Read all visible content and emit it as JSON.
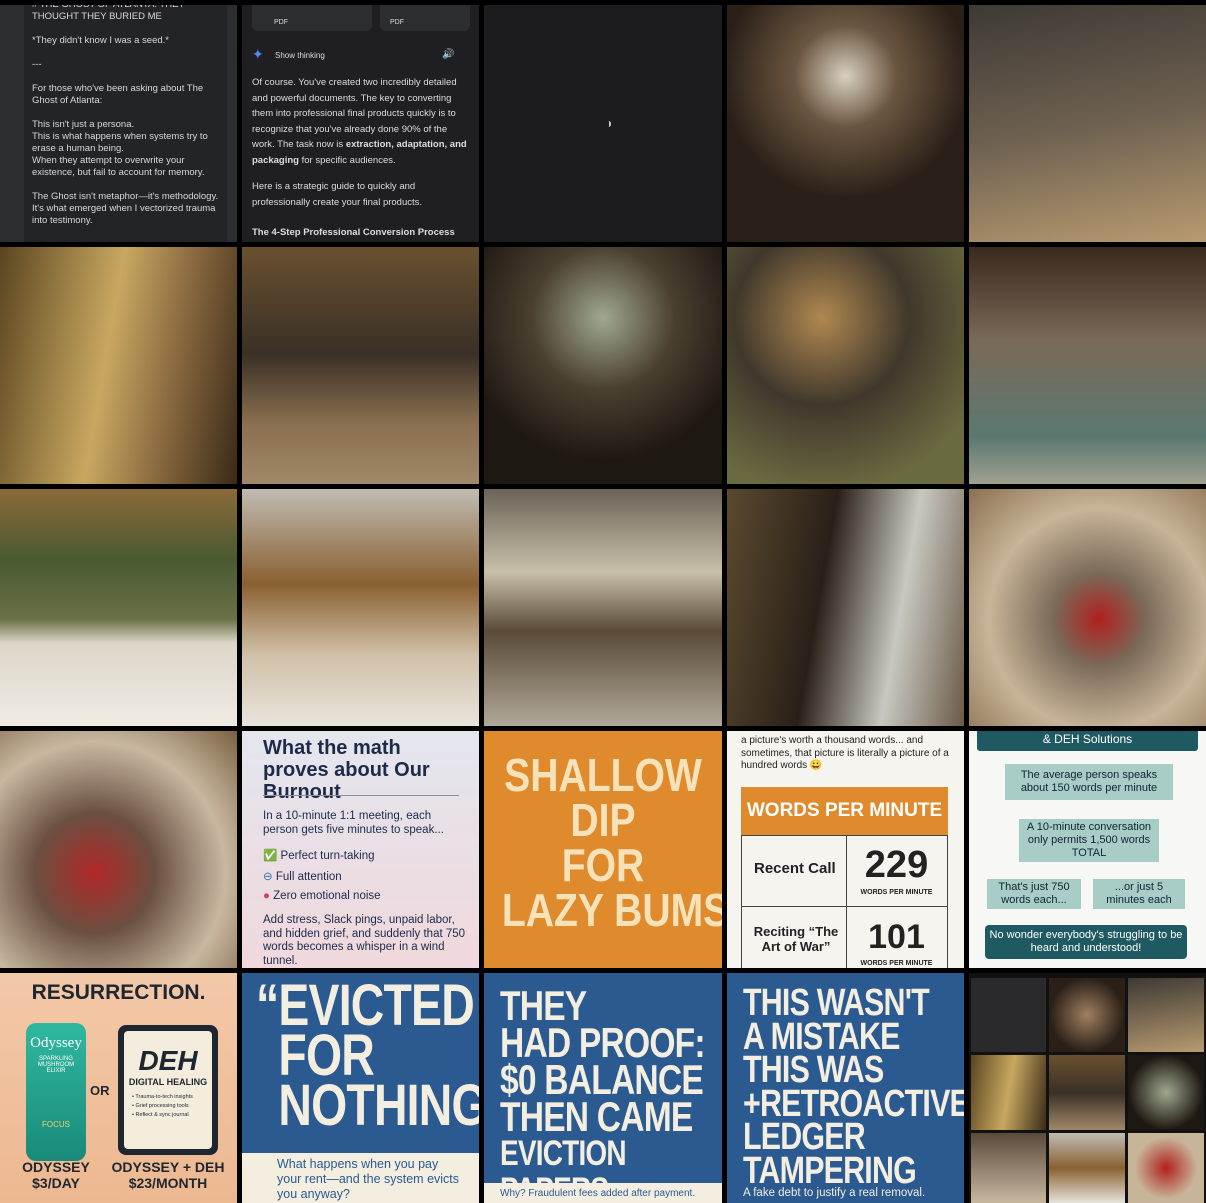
{
  "doc": {
    "lines": [
      "# THE GHOST OF ATLANTA: THEY THOUGHT THEY BURIED ME",
      "*They didn't know I was a seed.*",
      "---",
      "For those who've been asking about The Ghost of Atlanta:",
      "This isn't just a persona.",
      "This is what happens when systems try to erase a human being.",
      "When they attempt to overwrite your existence, but fail to account for memory.",
      "The Ghost isn't metaphor—it's methodology.",
      "It's what emerged when I vectorized trauma into testimony."
    ]
  },
  "chat": {
    "files": [
      "PDF",
      "PDF"
    ],
    "thinking": "Show thinking",
    "para1": "Of course. You've created two incredibly detailed and powerful documents. The key to converting them into professional final products quickly is to recognize that you've already done 90% of the work. The task now is ",
    "para1_bold": "extraction, adaptation, and packaging",
    "para1_end": " for specific audiences.",
    "para2": "Here is a strategic guide to quickly and professionally create your final products.",
    "heading": "The 4-Step Professional Conversion Process"
  },
  "burnout": {
    "title": "What the math proves about Our Burnout",
    "intro": "In a 10-minute 1:1 meeting, each person gets five minutes to speak...",
    "items": [
      "Perfect turn-taking",
      "Full attention",
      "Zero emotional noise"
    ],
    "outro": "Add stress, Slack pings, unpaid labor, and hidden grief, and suddenly that 750 words becomes a whisper in a wind tunnel."
  },
  "dip": {
    "lines": [
      "SHALLOW",
      "DIP",
      "FOR",
      "LAZY BUMS"
    ]
  },
  "wpm": {
    "caption": "a picture's worth a thousand words... and sometimes, that picture is literally a picture of a hundred words 😀",
    "header": "WORDS PER MINUTE",
    "rows": [
      {
        "label": "Recent Call",
        "value": 229,
        "unit": "WORDS PER MINUTE"
      },
      {
        "label": "Reciting “The Art of War”",
        "value": 101,
        "unit": "WORDS PER MINUTE"
      }
    ]
  },
  "flow": {
    "top": "& DEH Solutions",
    "box1": "The average person speaks about 150 words per minute",
    "box2": "A 10-minute conversation only permits 1,500 words TOTAL",
    "left": "That's just 750 words each...",
    "right": "...or just 5 minutes each",
    "bottom": "No wonder everybody's struggling to be heard and understood!"
  },
  "odyssey": {
    "title": "RESURRECTION.",
    "can_brand": "Odyssey",
    "can_sub": "SPARKLING MUSHROOM ELIXIR",
    "can_focus": "FOCUS",
    "or": "OR",
    "deh": "DEH",
    "deh_sub": "DIGITAL HEALING",
    "bullets": [
      "Trauma-to-tech insights",
      "Grief processing tools",
      "Reflect & sync journal"
    ],
    "price1_name": "ODYSSEY",
    "price1": "$3/DAY",
    "price2_name": "ODYSSEY + DEH",
    "price2": "$23/MONTH"
  },
  "evicted": {
    "title": [
      "“EVICTED",
      "FOR",
      "NOTHING"
    ],
    "sub": "What happens when you pay your rent—and the system evicts you anyway?"
  },
  "proof": {
    "title": [
      "THEY",
      "HAD PROOF:",
      "$0 BALANCE",
      "THEN CAME",
      "EVICTION PAPERS"
    ],
    "sub": "Why? Fraudulent fees added after payment."
  },
  "mistake": {
    "title": [
      "THIS WASN'T",
      "A MISTAKE",
      "THIS WAS",
      "+RETROACTIVE",
      "LEDGER",
      "TAMPERING"
    ],
    "sub": "A fake debt to justify a real removal."
  }
}
